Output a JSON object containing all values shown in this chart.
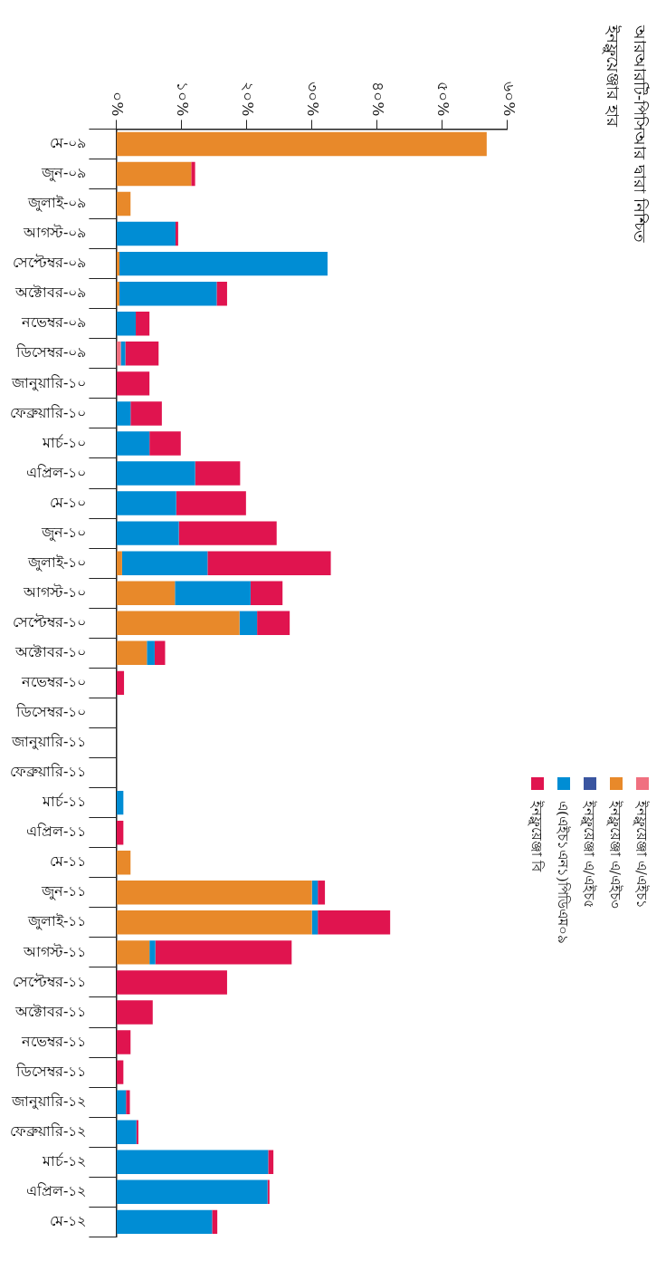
{
  "chart_data": {
    "type": "bar",
    "orientation": "horizontal",
    "stacked": true,
    "title": "আরআরটি-পিসিআর দ্বারা নিশ্চিত ইনফ্লুয়েঞ্জার হার",
    "legend": "right",
    "grid": false,
    "categories": [
      "মে-০৯",
      "জুন-০৯",
      "জুলাই-০৯",
      "আগস্ট-০৯",
      "সেপ্টেম্বর-০৯",
      "অক্টোবর-০৯",
      "নভেম্বর-০৯",
      "ডিসেম্বর-০৯",
      "জানুয়ারি-১০",
      "ফেব্রুয়ারি-১০",
      "মার্চ-১০",
      "এপ্রিল-১০",
      "মে-১০",
      "জুন-১০",
      "জুলাই-১০",
      "আগস্ট-১০",
      "সেপ্টেম্বর-১০",
      "অক্টোবর-১০",
      "নভেম্বর-১০",
      "ডিসেম্বর-১০",
      "জানুয়ারি-১১",
      "ফেব্রুয়ারি-১১",
      "মার্চ-১১",
      "এপ্রিল-১১",
      "মে-১১",
      "জুন-১১",
      "জুলাই-১১",
      "আগস্ট-১১",
      "সেপ্টেম্বর-১১",
      "অক্টোবর-১১",
      "নভেম্বর-১১",
      "ডিসেম্বর-১১",
      "জানুয়ারি-১২",
      "ফেব্রুয়ারি-১২",
      "মার্চ-১২",
      "এপ্রিল-১২",
      "মে-১২"
    ],
    "series": [
      {
        "name": "ইনফ্লুয়েঞ্জা এ/এইচ১",
        "color": "#f07080",
        "values": [
          0,
          0,
          0,
          0,
          0,
          0,
          0,
          0.7,
          0,
          0,
          0,
          0,
          0,
          0,
          0,
          0,
          0,
          0,
          0,
          0,
          0,
          0,
          0,
          0,
          0,
          0,
          0,
          0,
          0,
          0,
          0,
          0,
          0,
          0,
          0,
          0,
          0
        ]
      },
      {
        "name": "ইনফ্লুয়েঞ্জা এ/এইচ৩",
        "color": "#e8892a",
        "values": [
          56.8,
          11.5,
          2.2,
          0,
          0.5,
          0.5,
          0,
          0,
          0,
          0,
          0,
          0,
          0,
          0,
          0.9,
          9.0,
          18.9,
          4.7,
          0,
          0,
          0,
          0,
          0,
          0,
          2.2,
          30.0,
          30.0,
          5.1,
          0,
          0,
          0,
          0,
          0,
          0,
          0,
          0,
          0
        ]
      },
      {
        "name": "ইনফ্লুয়েঞ্জা এ/এইচ৫",
        "color": "#3a55a0",
        "values": [
          0,
          0,
          0,
          0,
          0,
          0,
          0,
          0,
          0,
          0,
          0,
          0,
          0,
          0,
          0,
          0,
          0,
          0,
          0,
          0,
          0,
          0,
          0,
          0,
          0,
          0,
          0,
          0,
          0,
          0,
          0,
          0,
          0,
          0,
          0,
          0,
          0
        ]
      },
      {
        "name": "এ(এইচ১এন১)পিডিএম০৯",
        "color": "#008dd4",
        "values": [
          0,
          0,
          0,
          9.1,
          31.9,
          14.9,
          3.0,
          0.7,
          0,
          2.2,
          5.1,
          12.1,
          9.2,
          9.6,
          13.1,
          11.6,
          2.7,
          1.2,
          0,
          0,
          0,
          0,
          1.1,
          0,
          0,
          0.9,
          0.9,
          0.9,
          0,
          0,
          0,
          0,
          1.5,
          3.1,
          23.3,
          23.2,
          14.7
        ]
      },
      {
        "name": "ইনফ্লুয়েঞ্জা বি",
        "color": "#e0144f",
        "values": [
          0,
          0.6,
          0,
          0.4,
          0,
          1.6,
          2.1,
          5.1,
          5.1,
          4.8,
          4.8,
          6.9,
          10.7,
          15.0,
          18.9,
          4.9,
          5.0,
          1.6,
          1.2,
          0,
          0,
          0,
          0,
          1.1,
          0,
          1.1,
          11.1,
          20.9,
          17.0,
          5.6,
          2.2,
          1.1,
          0.6,
          0.3,
          0.8,
          0.3,
          0.8
        ]
      }
    ],
    "xlim": [
      0,
      60
    ],
    "xticks": [
      {
        "value": 0,
        "label": "০%"
      },
      {
        "value": 10,
        "label": "১০%"
      },
      {
        "value": 20,
        "label": "২০%"
      },
      {
        "value": 30,
        "label": "৩০%"
      },
      {
        "value": 40,
        "label": "৪০%"
      },
      {
        "value": 50,
        "label": "৫০%"
      },
      {
        "value": 60,
        "label": "৬০%"
      }
    ]
  }
}
